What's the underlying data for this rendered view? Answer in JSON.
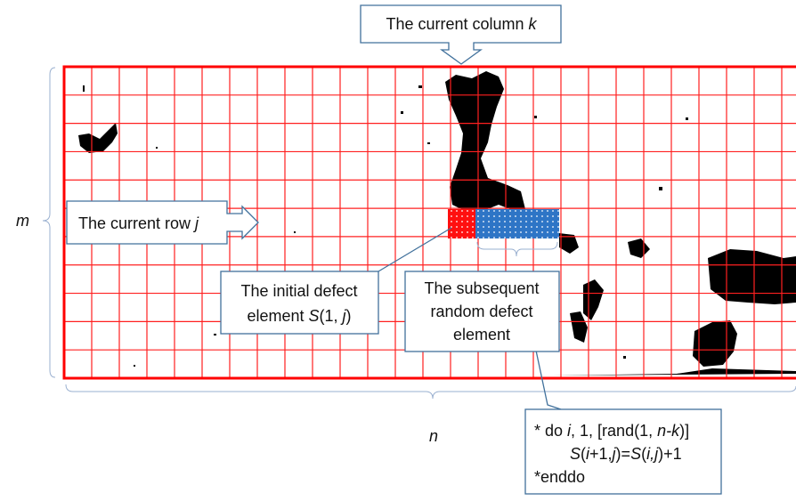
{
  "labels": {
    "column": [
      "The current column ",
      "k"
    ],
    "row": [
      "The current row ",
      "j"
    ],
    "m": "m",
    "n": "n",
    "initial": {
      "line1": "The initial defect",
      "line2": [
        "element ",
        "S",
        "(1, ",
        "j",
        ")"
      ]
    },
    "subsequent": [
      "The subsequent",
      "random defect",
      "element"
    ],
    "code": {
      "line1": [
        "* do ",
        "i",
        ", 1, [rand(1, ",
        "n-k",
        ")]"
      ],
      "line2": [
        "S",
        "(",
        "i",
        "+1,",
        "j",
        ")=",
        "S",
        "(",
        "i,j",
        ")+1"
      ],
      "line3": "*enddo"
    }
  }
}
